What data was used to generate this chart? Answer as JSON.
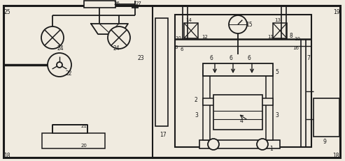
{
  "bg_color": "#f0ebe0",
  "line_color": "#1a1a1a",
  "lw": 1.3,
  "fig_w": 4.93,
  "fig_h": 2.31
}
